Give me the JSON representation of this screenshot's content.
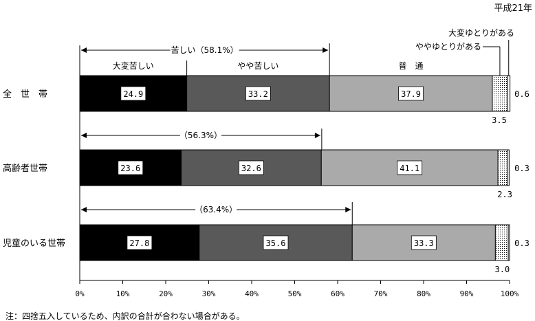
{
  "chart_data": {
    "type": "bar",
    "stacked": true,
    "orientation": "horizontal",
    "period_label": "平成21年",
    "categories": [
      "全　世　帯",
      "高齢者世帯",
      "児童のいる世帯"
    ],
    "series": [
      {
        "name": "大変苦しい",
        "values": [
          24.9,
          23.6,
          27.8
        ],
        "color": "#000000"
      },
      {
        "name": "やや苦しい",
        "values": [
          33.2,
          32.6,
          35.6
        ],
        "color": "#595959"
      },
      {
        "name": "普　通",
        "values": [
          37.9,
          41.1,
          33.3
        ],
        "color": "#aaaaaa"
      },
      {
        "name": "ややゆとりがある",
        "values": [
          3.5,
          2.3,
          3.0
        ],
        "color": "#ffffff"
      },
      {
        "name": "大変ゆとりがある",
        "values": [
          0.6,
          0.3,
          0.3
        ],
        "color": "#ffffff"
      }
    ],
    "hardship_brackets": [
      {
        "label": "苦しい（58.1%）",
        "value": 58.1
      },
      {
        "label": "（56.3%）",
        "value": 56.3
      },
      {
        "label": "（63.4%）",
        "value": 63.4
      }
    ],
    "x_ticks": [
      "0%",
      "10%",
      "20%",
      "30%",
      "40%",
      "50%",
      "60%",
      "70%",
      "80%",
      "90%",
      "100%"
    ],
    "xlim": [
      0,
      100
    ],
    "grid": false,
    "footnote": "注：四捨五入しているため、内訳の合計が合わない場合がある。"
  }
}
